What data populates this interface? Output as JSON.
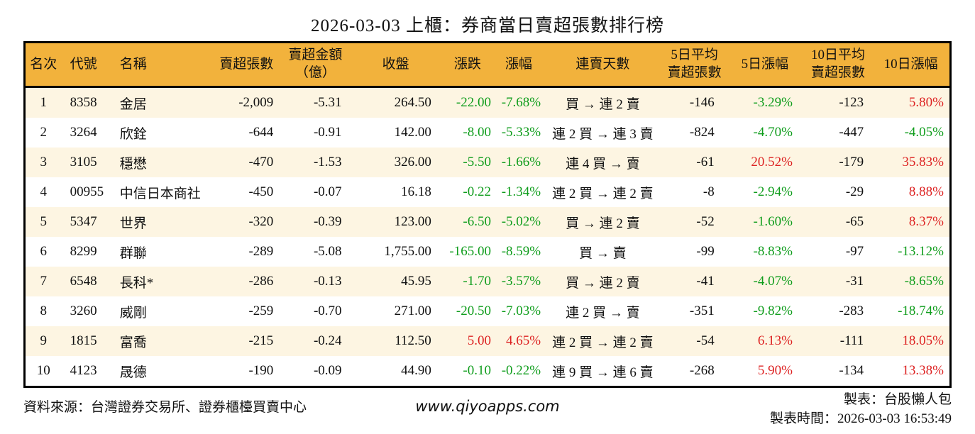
{
  "title": "2026-03-03 上櫃：券商當日賣超張數排行榜",
  "chart_data": {
    "type": "table",
    "title": "2026-03-03 上櫃：券商當日賣超張數排行榜",
    "columns": [
      {
        "key": "rank",
        "label": "名次"
      },
      {
        "key": "code",
        "label": "代號"
      },
      {
        "key": "name",
        "label": "名稱"
      },
      {
        "key": "net_sell",
        "label": "賣超張數"
      },
      {
        "key": "net_amount",
        "label": "賣超金額\n（億）"
      },
      {
        "key": "close",
        "label": "收盤"
      },
      {
        "key": "change",
        "label": "漲跌",
        "colored": true
      },
      {
        "key": "change_pct",
        "label": "漲幅",
        "colored": true
      },
      {
        "key": "streak",
        "label": "連賣天數"
      },
      {
        "key": "avg5",
        "label": "5日平均\n賣超張數"
      },
      {
        "key": "pct5",
        "label": "5日漲幅",
        "colored": true
      },
      {
        "key": "avg10",
        "label": "10日平均\n賣超張數"
      },
      {
        "key": "pct10",
        "label": "10日漲幅",
        "colored": true
      }
    ],
    "rows": [
      [
        "1",
        "8358",
        "金居",
        "-2,009",
        "-5.31",
        "264.50",
        "-22.00",
        "-7.68%",
        "買 → 連 2 賣",
        "-146",
        "-3.29%",
        "-123",
        "5.80%"
      ],
      [
        "2",
        "3264",
        "欣銓",
        "-644",
        "-0.91",
        "142.00",
        "-8.00",
        "-5.33%",
        "連 2 買 → 連 3 賣",
        "-824",
        "-4.70%",
        "-447",
        "-4.05%"
      ],
      [
        "3",
        "3105",
        "穩懋",
        "-470",
        "-1.53",
        "326.00",
        "-5.50",
        "-1.66%",
        "連 4 買 → 賣",
        "-61",
        "20.52%",
        "-179",
        "35.83%"
      ],
      [
        "4",
        "00955",
        "中信日本商社",
        "-450",
        "-0.07",
        "16.18",
        "-0.22",
        "-1.34%",
        "連 2 買 → 連 2 賣",
        "-8",
        "-2.94%",
        "-29",
        "8.88%"
      ],
      [
        "5",
        "5347",
        "世界",
        "-320",
        "-0.39",
        "123.00",
        "-6.50",
        "-5.02%",
        "買 → 連 2 賣",
        "-52",
        "-1.60%",
        "-65",
        "8.37%"
      ],
      [
        "6",
        "8299",
        "群聯",
        "-289",
        "-5.08",
        "1,755.00",
        "-165.00",
        "-8.59%",
        "買 → 賣",
        "-99",
        "-8.83%",
        "-97",
        "-13.12%"
      ],
      [
        "7",
        "6548",
        "長科*",
        "-286",
        "-0.13",
        "45.95",
        "-1.70",
        "-3.57%",
        "買 → 連 2 賣",
        "-41",
        "-4.07%",
        "-31",
        "-8.65%"
      ],
      [
        "8",
        "3260",
        "威剛",
        "-259",
        "-0.70",
        "271.00",
        "-20.50",
        "-7.03%",
        "連 2 買 → 賣",
        "-351",
        "-9.82%",
        "-283",
        "-18.74%"
      ],
      [
        "9",
        "1815",
        "富喬",
        "-215",
        "-0.24",
        "112.50",
        "5.00",
        "4.65%",
        "連 2 買 → 連 2 賣",
        "-54",
        "6.13%",
        "-111",
        "18.05%"
      ],
      [
        "10",
        "4123",
        "晟德",
        "-190",
        "-0.09",
        "44.90",
        "-0.10",
        "-0.22%",
        "連 9 買 → 連 6 賣",
        "-268",
        "5.90%",
        "-134",
        "13.38%"
      ]
    ]
  },
  "footer": {
    "source": "資料來源：台灣證券交易所、證券櫃檯買賣中心",
    "website": "www.qiyoapps.com",
    "maker": "製表：台股懶人包",
    "made_time": "製表時間：2026-03-03 16:53:49"
  },
  "colors": {
    "header_bg": "#F2B23C",
    "row_alt_bg": "#FDF5E2",
    "up_red": "#DD2222",
    "down_green": "#0F9D1C"
  }
}
